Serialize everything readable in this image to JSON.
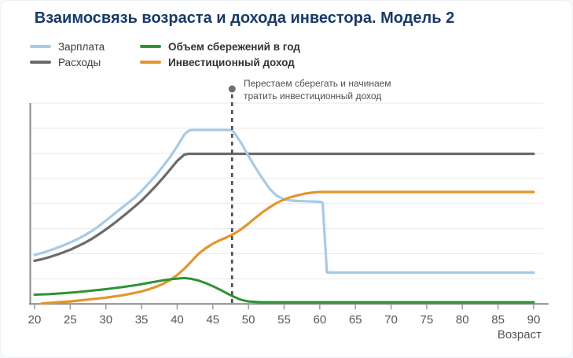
{
  "title": "Взаимосвязь возраста и дохода инвестора. Модель 2",
  "legend": {
    "items": [
      {
        "key": "salary",
        "label": "Зарплата",
        "color": "#a6cbe7",
        "bold": false
      },
      {
        "key": "annual-savings",
        "label": "Объем сбережений в год",
        "color": "#2e9237",
        "bold": true
      },
      {
        "key": "expenses",
        "label": "Расходы",
        "color": "#6b6b6b",
        "bold": false
      },
      {
        "key": "investment-income",
        "label": "Инвестиционный доход",
        "color": "#e2952e",
        "bold": true
      }
    ]
  },
  "annotation": {
    "line1": "Перестаем сберегать и начинаем",
    "line2": "тратить инвестиционный доход",
    "age": 47.7,
    "dot_color": "#6f6f6f",
    "dash_color": "#4a4a4a"
  },
  "colors": {
    "title": "#1a3a68",
    "axis": "#8a8a8a",
    "grid": "#e9e9e9",
    "tick": "#9a9a9a",
    "tick_label": "#555555"
  },
  "chart_data": {
    "type": "line",
    "title": "Взаимосвязь возраста и дохода инвестора. Модель 2",
    "xlabel": "Возраст",
    "ylabel": "",
    "x_range": [
      20,
      90
    ],
    "x_ticks": [
      20,
      25,
      30,
      35,
      40,
      45,
      50,
      55,
      60,
      65,
      70,
      75,
      80,
      85,
      90
    ],
    "y_axis_labels": "none",
    "y_gridlines": 8,
    "y_units_note": "relative money units, 1 unit = 1 gridline step",
    "legend_position": "top-left",
    "annotation_line": {
      "age": 47.7,
      "label": "Перестаем сберегать и начинаем тратить инвестиционный доход"
    },
    "series": [
      {
        "key": "salary",
        "name": "Зарплата",
        "color": "#a6cbe7",
        "width": 3.2,
        "points": [
          [
            20,
            1.95
          ],
          [
            21,
            2.03
          ],
          [
            22,
            2.12
          ],
          [
            23,
            2.22
          ],
          [
            24,
            2.33
          ],
          [
            25,
            2.45
          ],
          [
            26,
            2.58
          ],
          [
            27,
            2.73
          ],
          [
            28,
            2.9
          ],
          [
            29,
            3.1
          ],
          [
            30,
            3.32
          ],
          [
            31,
            3.55
          ],
          [
            32,
            3.78
          ],
          [
            33,
            4.0
          ],
          [
            34,
            4.22
          ],
          [
            35,
            4.5
          ],
          [
            36,
            4.8
          ],
          [
            37,
            5.12
          ],
          [
            38,
            5.48
          ],
          [
            39,
            5.85
          ],
          [
            40,
            6.28
          ],
          [
            41,
            6.75
          ],
          [
            41.6,
            6.9
          ],
          [
            42,
            6.93
          ],
          [
            43,
            6.93
          ],
          [
            44,
            6.93
          ],
          [
            45,
            6.93
          ],
          [
            46,
            6.93
          ],
          [
            47,
            6.93
          ],
          [
            47.7,
            6.92
          ],
          [
            48,
            6.83
          ],
          [
            49,
            6.4
          ],
          [
            50,
            5.9
          ],
          [
            51,
            5.42
          ],
          [
            52,
            4.98
          ],
          [
            53,
            4.58
          ],
          [
            54,
            4.3
          ],
          [
            55,
            4.17
          ],
          [
            56,
            4.12
          ],
          [
            57,
            4.1
          ],
          [
            58,
            4.09
          ],
          [
            59,
            4.08
          ],
          [
            60,
            4.07
          ],
          [
            60.4,
            4.04
          ],
          [
            61,
            1.26
          ],
          [
            62,
            1.25
          ],
          [
            90,
            1.25
          ]
        ]
      },
      {
        "key": "expenses",
        "name": "Расходы",
        "color": "#6b6b6b",
        "width": 3.2,
        "points": [
          [
            20,
            1.72
          ],
          [
            21,
            1.78
          ],
          [
            22,
            1.86
          ],
          [
            23,
            1.95
          ],
          [
            24,
            2.05
          ],
          [
            25,
            2.16
          ],
          [
            26,
            2.29
          ],
          [
            27,
            2.43
          ],
          [
            28,
            2.59
          ],
          [
            29,
            2.77
          ],
          [
            30,
            2.97
          ],
          [
            31,
            3.18
          ],
          [
            32,
            3.4
          ],
          [
            33,
            3.63
          ],
          [
            34,
            3.87
          ],
          [
            35,
            4.12
          ],
          [
            36,
            4.4
          ],
          [
            37,
            4.7
          ],
          [
            38,
            5.02
          ],
          [
            39,
            5.35
          ],
          [
            40,
            5.7
          ],
          [
            41,
            5.95
          ],
          [
            41.6,
            5.98
          ],
          [
            45,
            5.98
          ],
          [
            90,
            5.98
          ]
        ]
      },
      {
        "key": "annual-savings",
        "name": "Объем сбережений в год",
        "color": "#2e9237",
        "width": 3,
        "points": [
          [
            20,
            0.37
          ],
          [
            22,
            0.39
          ],
          [
            24,
            0.43
          ],
          [
            26,
            0.47
          ],
          [
            28,
            0.53
          ],
          [
            30,
            0.59
          ],
          [
            32,
            0.66
          ],
          [
            34,
            0.74
          ],
          [
            35,
            0.79
          ],
          [
            36,
            0.84
          ],
          [
            37,
            0.89
          ],
          [
            38,
            0.94
          ],
          [
            39,
            0.98
          ],
          [
            40,
            1.01
          ],
          [
            41,
            1.03
          ],
          [
            42,
            1.0
          ],
          [
            43,
            0.93
          ],
          [
            44,
            0.83
          ],
          [
            45,
            0.71
          ],
          [
            46,
            0.57
          ],
          [
            47,
            0.42
          ],
          [
            48,
            0.28
          ],
          [
            49,
            0.16
          ],
          [
            50,
            0.1
          ],
          [
            51,
            0.08
          ],
          [
            52,
            0.07
          ],
          [
            90,
            0.07
          ]
        ]
      },
      {
        "key": "investment-income",
        "name": "Инвестиционный доход",
        "color": "#e2952e",
        "width": 3.2,
        "points": [
          [
            21,
            0.02
          ],
          [
            23,
            0.06
          ],
          [
            25,
            0.1
          ],
          [
            27,
            0.16
          ],
          [
            29,
            0.22
          ],
          [
            30,
            0.25
          ],
          [
            31,
            0.29
          ],
          [
            32,
            0.33
          ],
          [
            33,
            0.38
          ],
          [
            34,
            0.44
          ],
          [
            35,
            0.5
          ],
          [
            36,
            0.58
          ],
          [
            37,
            0.68
          ],
          [
            38,
            0.8
          ],
          [
            39,
            0.95
          ],
          [
            40,
            1.15
          ],
          [
            41,
            1.4
          ],
          [
            42,
            1.7
          ],
          [
            43,
            2.0
          ],
          [
            44,
            2.22
          ],
          [
            45,
            2.4
          ],
          [
            46,
            2.54
          ],
          [
            47,
            2.66
          ],
          [
            48,
            2.8
          ],
          [
            49,
            2.98
          ],
          [
            50,
            3.2
          ],
          [
            51,
            3.44
          ],
          [
            52,
            3.66
          ],
          [
            53,
            3.86
          ],
          [
            54,
            4.03
          ],
          [
            55,
            4.16
          ],
          [
            56,
            4.26
          ],
          [
            57,
            4.34
          ],
          [
            58,
            4.4
          ],
          [
            59,
            4.44
          ],
          [
            60,
            4.46
          ],
          [
            62,
            4.46
          ],
          [
            90,
            4.46
          ]
        ]
      }
    ]
  }
}
